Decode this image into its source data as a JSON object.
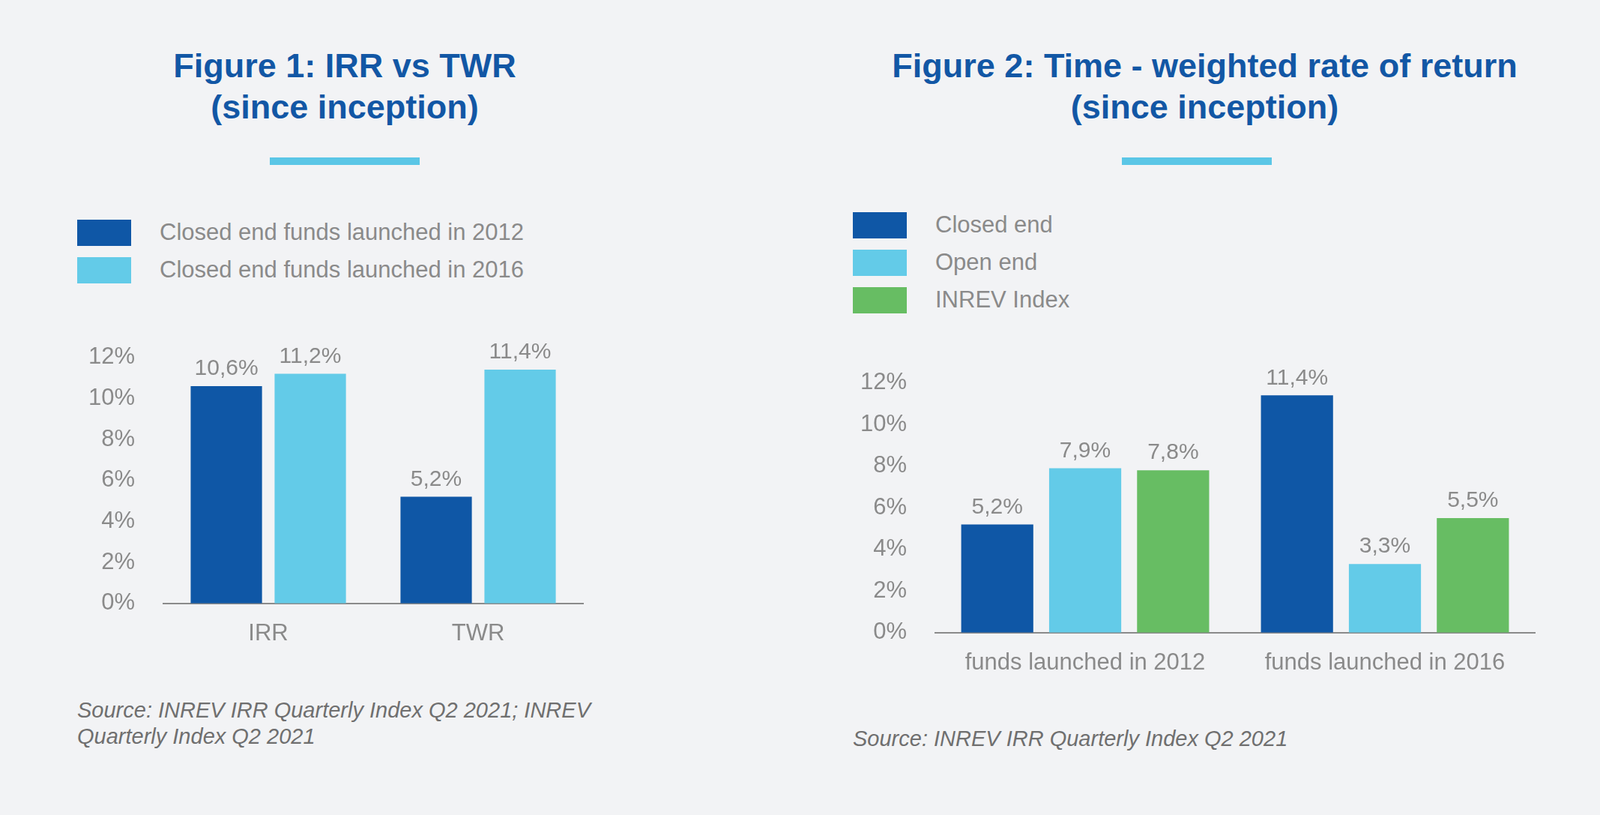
{
  "chart_data": [
    {
      "type": "bar",
      "title": [
        "Figure 1: IRR vs TWR",
        "(since inception)"
      ],
      "categories": [
        "IRR",
        "TWR"
      ],
      "series": [
        {
          "name": "Closed end funds launched in 2012",
          "color": "#0f57a6",
          "values": [
            10.6,
            5.2
          ],
          "value_labels": [
            "10,6%",
            "5,2%"
          ]
        },
        {
          "name": "Closed end funds launched in 2016",
          "color": "#63cbe8",
          "values": [
            11.2,
            11.4
          ],
          "value_labels": [
            "11,2%",
            "11,4%"
          ]
        }
      ],
      "ylim": [
        0,
        12
      ],
      "yticks": [
        {
          "value": 0,
          "label": "0%"
        },
        {
          "value": 2,
          "label": "2%"
        },
        {
          "value": 4,
          "label": "4%"
        },
        {
          "value": 6,
          "label": "6%"
        },
        {
          "value": 8,
          "label": "8%"
        },
        {
          "value": 10,
          "label": "10%"
        },
        {
          "value": 12,
          "label": "12%"
        }
      ],
      "grid": false,
      "legend": "upper left",
      "data_labels": true,
      "source": "Source: INREV IRR Quarterly Index Q2 2021; INREV Quarterly Index Q2 2021"
    },
    {
      "type": "bar",
      "title": [
        "Figure 2: Time - weighted rate of return",
        "(since inception)"
      ],
      "categories": [
        "funds launched in 2012",
        "funds launched in 2016"
      ],
      "series": [
        {
          "name": "Closed end",
          "color": "#0f57a6",
          "values": [
            5.2,
            11.4
          ],
          "value_labels": [
            "5,2%",
            "11,4%"
          ]
        },
        {
          "name": "Open end",
          "color": "#63cbe8",
          "values": [
            7.9,
            3.3
          ],
          "value_labels": [
            "7,9%",
            "3,3%"
          ]
        },
        {
          "name": "INREV Index",
          "color": "#67bd63",
          "values": [
            7.8,
            5.5
          ],
          "value_labels": [
            "7,8%",
            "5,5%"
          ]
        }
      ],
      "ylim": [
        0,
        12
      ],
      "yticks": [
        {
          "value": 0,
          "label": "0%"
        },
        {
          "value": 2,
          "label": "2%"
        },
        {
          "value": 4,
          "label": "4%"
        },
        {
          "value": 6,
          "label": "6%"
        },
        {
          "value": 8,
          "label": "8%"
        },
        {
          "value": 10,
          "label": "10%"
        },
        {
          "value": 12,
          "label": "12%"
        }
      ],
      "grid": false,
      "legend": "upper left",
      "data_labels": true,
      "source": "Source: INREV IRR Quarterly Index Q2 2021"
    }
  ]
}
